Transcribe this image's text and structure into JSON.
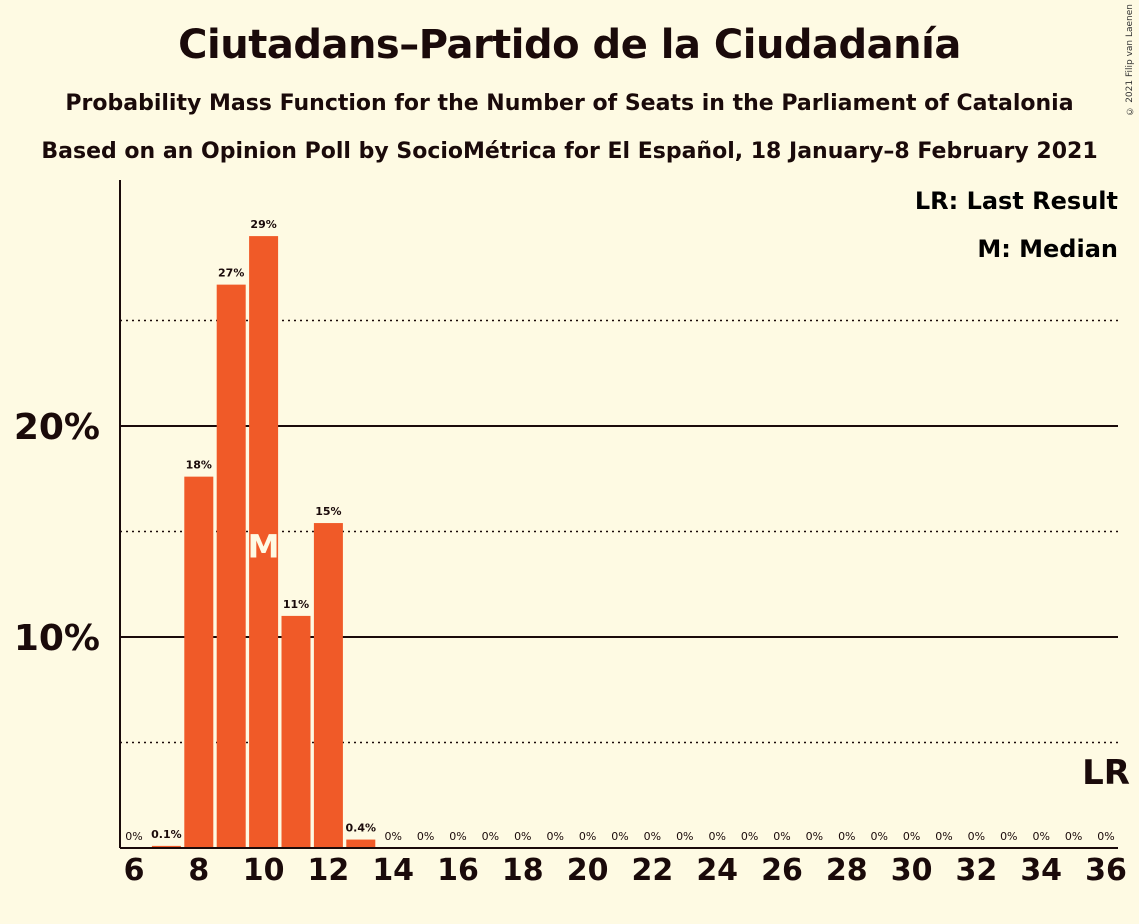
{
  "title": "Ciutadans–Partido de la Ciudadanía",
  "subtitle1": "Probability Mass Function for the Number of Seats in the Parliament of Catalonia",
  "subtitle2": "Based on an Opinion Poll by SocioMétrica for El Español, 18 January–8 February 2021",
  "copyright": "© 2021 Filip van Laenen",
  "legend": {
    "lr": "LR: Last Result",
    "m": "M: Median"
  },
  "colors": {
    "bar": "#f05a28",
    "background": "#fefae3",
    "text": "#1a0a0a"
  },
  "chart_data": {
    "type": "bar",
    "categories": [
      6,
      7,
      8,
      9,
      10,
      11,
      12,
      13,
      14,
      15,
      16,
      17,
      18,
      19,
      20,
      21,
      22,
      23,
      24,
      25,
      26,
      27,
      28,
      29,
      30,
      31,
      32,
      33,
      34,
      35,
      36
    ],
    "values": [
      0,
      0.1,
      17.6,
      26.7,
      29.0,
      11.0,
      15.4,
      0.4,
      0,
      0,
      0,
      0,
      0,
      0,
      0,
      0,
      0,
      0,
      0,
      0,
      0,
      0,
      0,
      0,
      0,
      0,
      0,
      0,
      0,
      0,
      0
    ],
    "data_labels": [
      "0%",
      "0.1%",
      "18%",
      "27%",
      "29%",
      "11%",
      "15%",
      "0.4%",
      "0%",
      "0%",
      "0%",
      "0%",
      "0%",
      "0%",
      "0%",
      "0%",
      "0%",
      "0%",
      "0%",
      "0%",
      "0%",
      "0%",
      "0%",
      "0%",
      "0%",
      "0%",
      "0%",
      "0%",
      "0%",
      "0%",
      "0%"
    ],
    "x_tick_labels": [
      "6",
      "8",
      "10",
      "12",
      "14",
      "16",
      "18",
      "20",
      "22",
      "24",
      "26",
      "28",
      "30",
      "32",
      "34",
      "36"
    ],
    "y_tick_labels": [
      {
        "value": 10,
        "label": "10%"
      },
      {
        "value": 20,
        "label": "20%"
      }
    ],
    "gridlines_solid": [
      10,
      20
    ],
    "gridlines_dotted": [
      5,
      15,
      25
    ],
    "ylim": [
      0,
      31.5
    ],
    "median": 10,
    "median_marker": "M",
    "last_result": 36,
    "last_result_marker": "LR"
  }
}
